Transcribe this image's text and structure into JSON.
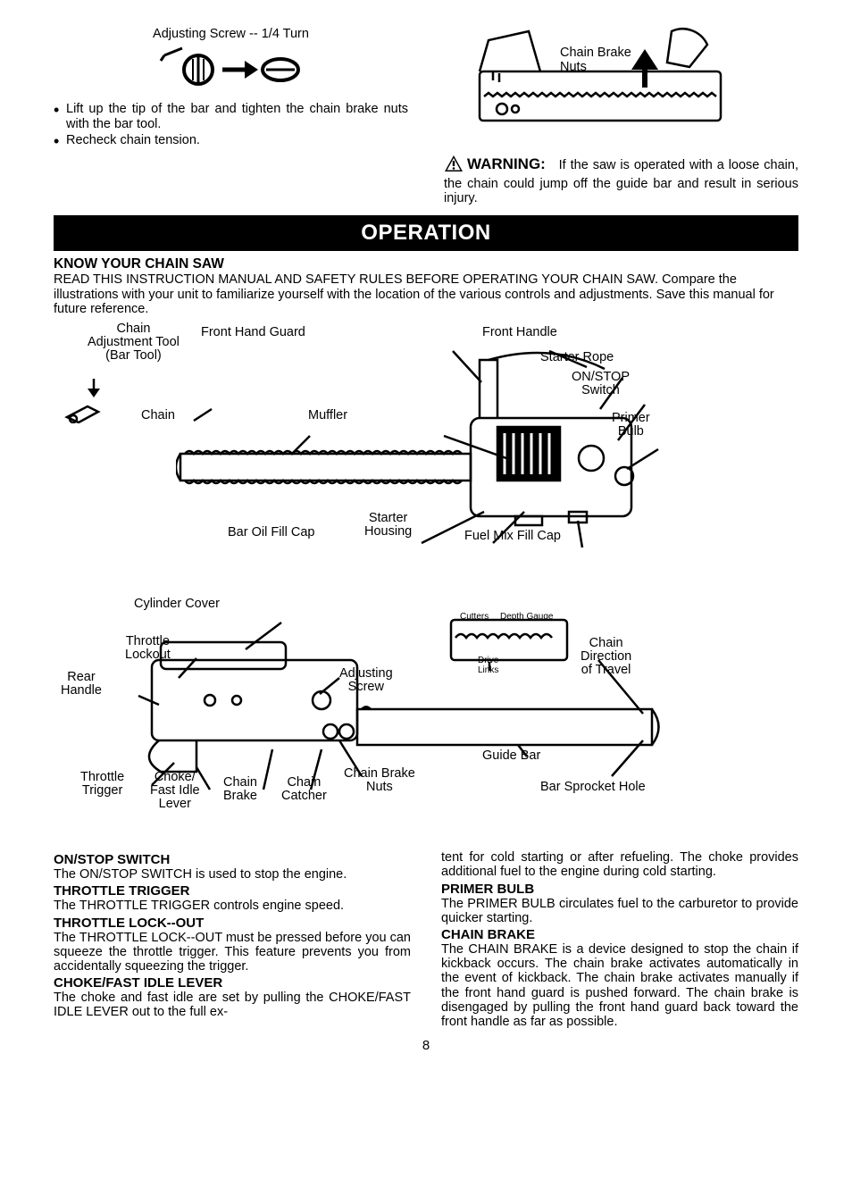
{
  "top": {
    "adj_label": "Adjusting Screw -- 1/4 Turn",
    "bullets": [
      "Lift up the tip of the bar and tighten the chain brake nuts with the bar tool.",
      "Recheck chain tension."
    ],
    "cbn_label_l1": "Chain Brake",
    "cbn_label_l2": "Nuts",
    "warning_word": "WARNING:",
    "warning_text": "If the saw is operated with a loose chain, the chain could jump off the guide bar and result in serious injury."
  },
  "operation_title": "OPERATION",
  "know": {
    "heading": "KNOW YOUR CHAIN SAW",
    "para": "READ THIS INSTRUCTION MANUAL AND SAFETY RULES BEFORE OPERATING YOUR CHAIN SAW. Compare the illustrations with your unit to familiarize yourself with the location of the various controls and adjustments. Save this manual for future reference."
  },
  "diagram1_labels": {
    "chain_adj_tool": "Chain\nAdjustment Tool\n(Bar Tool)",
    "front_hand_guard": "Front Hand Guard",
    "front_handle": "Front Handle",
    "starter_rope": "Starter Rope",
    "on_stop": "ON/STOP\nSwitch",
    "chain": "Chain",
    "muffler": "Muffler",
    "primer_bulb": "Primer\nBulb",
    "bar_oil": "Bar Oil Fill Cap",
    "starter_housing": "Starter\nHousing",
    "fuel_mix": "Fuel Mix Fill Cap"
  },
  "diagram2_labels": {
    "cylinder_cover": "Cylinder Cover",
    "throttle_lockout": "Throttle\nLockout",
    "adjusting_screw": "Adjusting\nScrew",
    "rear_handle": "Rear\nHandle",
    "throttle_trigger": "Throttle\nTrigger",
    "choke_fast_idle": "Choke/\nFast Idle\nLever",
    "chain_brake": "Chain\nBrake",
    "chain_catcher": "Chain\nCatcher",
    "chain_brake_nuts": "Chain Brake\nNuts",
    "cutters": "Cutters",
    "depth_gauge": "Depth Gauge",
    "drive_links": "Drive\nLinks",
    "chain_direction": "Chain\nDirection\nof Travel",
    "guide_bar": "Guide Bar",
    "bar_sprocket_hole": "Bar Sprocket Hole"
  },
  "sections": {
    "on_stop_h": "ON/STOP SWITCH",
    "on_stop_p": "The ON/STOP SWITCH is used to stop the engine.",
    "throttle_trigger_h": "THROTTLE TRIGGER",
    "throttle_trigger_p": "The THROTTLE TRIGGER controls engine speed.",
    "throttle_lockout_h": "THROTTLE LOCK--OUT",
    "throttle_lockout_p": "The THROTTLE LOCK--OUT must be pressed before you can squeeze the throttle trigger. This feature prevents you from accidentally squeezing the trigger.",
    "choke_h": "CHOKE/FAST IDLE LEVER",
    "choke_p": "The choke and fast idle are set by pulling the CHOKE/FAST IDLE LEVER out to the full ex-",
    "choke_p2": "tent for cold starting or after refueling. The choke provides additional fuel to the engine during cold starting.",
    "primer_h": "PRIMER BULB",
    "primer_p": "The PRIMER BULB circulates fuel to the carburetor to provide quicker starting.",
    "chain_brake_h": "CHAIN BRAKE",
    "chain_brake_p": "The CHAIN BRAKE is a device designed to stop the chain if kickback occurs. The chain brake activates automatically in the event of kickback. The chain brake activates manually if the front hand guard is pushed forward. The chain brake is disengaged by pulling the front hand guard back toward the front handle as far as possible."
  },
  "page_number": "8"
}
